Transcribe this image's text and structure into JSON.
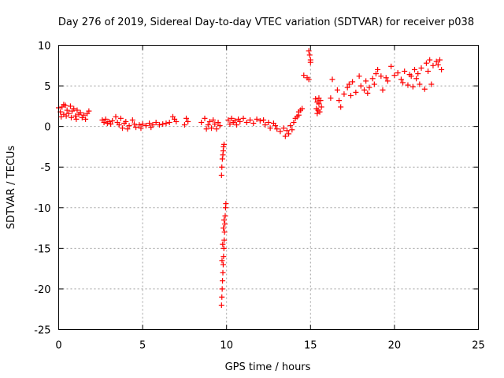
{
  "chart_data": {
    "type": "scatter",
    "title": "Day 276 of 2019, Sidereal Day-to-day VTEC variation (SDTVAR) for receiver p038",
    "xlabel": "GPS time / hours",
    "ylabel": "SDTVAR / TECUs",
    "xlim": [
      0,
      25
    ],
    "ylim": [
      -25,
      10
    ],
    "xticks": [
      0,
      5,
      10,
      15,
      20,
      25
    ],
    "yticks": [
      -25,
      -20,
      -15,
      -10,
      -5,
      0,
      5,
      10
    ],
    "xtick_labels": [
      "0",
      "5",
      "10",
      "15",
      "20",
      "25"
    ],
    "ytick_labels": [
      "-25",
      "-20",
      "-15",
      "-10",
      "-5",
      "0",
      "5",
      "10"
    ],
    "grid": true,
    "marker": "+",
    "series": [
      {
        "name": "SDTVAR",
        "color": "#ff0000",
        "points": [
          [
            0.0,
            2.3
          ],
          [
            0.1,
            1.8
          ],
          [
            0.2,
            2.4
          ],
          [
            0.3,
            1.5
          ],
          [
            0.4,
            2.6
          ],
          [
            0.5,
            2.0
          ],
          [
            0.6,
            1.6
          ],
          [
            0.7,
            2.5
          ],
          [
            0.8,
            1.9
          ],
          [
            0.9,
            2.2
          ],
          [
            1.0,
            1.3
          ],
          [
            1.1,
            2.0
          ],
          [
            1.2,
            1.5
          ],
          [
            1.3,
            1.7
          ],
          [
            1.4,
            1.1
          ],
          [
            1.5,
            1.4
          ],
          [
            1.6,
            0.9
          ],
          [
            1.7,
            1.6
          ],
          [
            1.8,
            1.9
          ],
          [
            0.15,
            1.2
          ],
          [
            0.45,
            1.3
          ],
          [
            0.75,
            1.1
          ],
          [
            1.05,
            0.9
          ],
          [
            0.3,
            2.7
          ],
          [
            2.6,
            0.8
          ],
          [
            2.7,
            0.5
          ],
          [
            2.8,
            0.9
          ],
          [
            2.9,
            0.4
          ],
          [
            3.0,
            0.6
          ],
          [
            3.1,
            0.3
          ],
          [
            3.2,
            0.7
          ],
          [
            3.4,
            1.2
          ],
          [
            3.5,
            0.5
          ],
          [
            3.6,
            0.2
          ],
          [
            3.7,
            1.0
          ],
          [
            3.8,
            -0.2
          ],
          [
            3.9,
            0.4
          ],
          [
            4.0,
            0.6
          ],
          [
            4.1,
            -0.3
          ],
          [
            4.2,
            0.1
          ],
          [
            4.4,
            0.8
          ],
          [
            4.5,
            0.3
          ],
          [
            4.6,
            -0.1
          ],
          [
            4.8,
            0.2
          ],
          [
            5.0,
            0.3
          ],
          [
            5.2,
            0.1
          ],
          [
            5.4,
            0.4
          ],
          [
            5.6,
            0.2
          ],
          [
            5.8,
            0.5
          ],
          [
            6.0,
            0.2
          ],
          [
            6.2,
            0.3
          ],
          [
            6.4,
            0.4
          ],
          [
            6.6,
            0.5
          ],
          [
            4.9,
            -0.2
          ],
          [
            5.5,
            -0.1
          ],
          [
            6.8,
            1.2
          ],
          [
            6.9,
            0.9
          ],
          [
            7.0,
            0.6
          ],
          [
            7.5,
            0.2
          ],
          [
            7.6,
            1.0
          ],
          [
            7.7,
            0.6
          ],
          [
            8.5,
            0.5
          ],
          [
            8.7,
            1.0
          ],
          [
            8.9,
            0.2
          ],
          [
            9.0,
            0.6
          ],
          [
            9.1,
            -0.2
          ],
          [
            9.2,
            0.8
          ],
          [
            9.3,
            0.3
          ],
          [
            9.4,
            -0.3
          ],
          [
            9.5,
            0.5
          ],
          [
            9.6,
            0.1
          ],
          [
            8.8,
            -0.3
          ],
          [
            9.7,
            -6.0
          ],
          [
            9.72,
            -5.0
          ],
          [
            9.75,
            -4.0
          ],
          [
            9.78,
            -3.5
          ],
          [
            9.8,
            -3.0
          ],
          [
            9.82,
            -2.5
          ],
          [
            9.85,
            -2.2
          ],
          [
            9.7,
            -22.0
          ],
          [
            9.72,
            -21.0
          ],
          [
            9.74,
            -20.0
          ],
          [
            9.76,
            -19.0
          ],
          [
            9.78,
            -18.0
          ],
          [
            9.8,
            -17.0
          ],
          [
            9.82,
            -16.0
          ],
          [
            9.84,
            -15.0
          ],
          [
            9.86,
            -14.0
          ],
          [
            9.88,
            -13.0
          ],
          [
            9.9,
            -12.0
          ],
          [
            9.92,
            -11.0
          ],
          [
            9.94,
            -10.0
          ],
          [
            9.96,
            -9.5
          ],
          [
            9.73,
            -16.5
          ],
          [
            9.77,
            -14.5
          ],
          [
            9.81,
            -12.5
          ],
          [
            9.85,
            -11.5
          ],
          [
            10.1,
            0.8
          ],
          [
            10.2,
            0.3
          ],
          [
            10.3,
            1.0
          ],
          [
            10.4,
            0.5
          ],
          [
            10.5,
            0.7
          ],
          [
            10.6,
            0.2
          ],
          [
            10.7,
            0.9
          ],
          [
            10.8,
            0.6
          ],
          [
            11.0,
            1.0
          ],
          [
            11.2,
            0.5
          ],
          [
            11.4,
            0.8
          ],
          [
            11.6,
            0.4
          ],
          [
            11.8,
            0.9
          ],
          [
            12.0,
            0.7
          ],
          [
            12.2,
            0.8
          ],
          [
            12.3,
            0.2
          ],
          [
            12.5,
            0.5
          ],
          [
            12.6,
            -0.2
          ],
          [
            12.8,
            0.4
          ],
          [
            12.9,
            0.1
          ],
          [
            13.0,
            -0.3
          ],
          [
            13.2,
            -0.6
          ],
          [
            13.4,
            -0.2
          ],
          [
            13.5,
            -1.2
          ],
          [
            13.6,
            -0.5
          ],
          [
            13.7,
            -0.9
          ],
          [
            13.8,
            0.1
          ],
          [
            14.0,
            0.5
          ],
          [
            14.1,
            1.0
          ],
          [
            14.2,
            1.2
          ],
          [
            14.3,
            1.8
          ],
          [
            14.4,
            2.0
          ],
          [
            14.5,
            2.2
          ],
          [
            14.3,
            1.4
          ],
          [
            13.9,
            -0.4
          ],
          [
            14.6,
            6.3
          ],
          [
            14.8,
            6.0
          ],
          [
            14.9,
            5.8
          ],
          [
            14.9,
            9.3
          ],
          [
            14.95,
            8.8
          ],
          [
            15.0,
            8.2
          ],
          [
            15.0,
            7.9
          ],
          [
            15.3,
            3.4
          ],
          [
            15.35,
            2.2
          ],
          [
            15.4,
            3.0
          ],
          [
            15.45,
            2.0
          ],
          [
            15.5,
            2.8
          ],
          [
            15.55,
            1.8
          ],
          [
            15.6,
            3.2
          ],
          [
            15.65,
            2.4
          ],
          [
            15.4,
            1.6
          ],
          [
            15.5,
            3.5
          ],
          [
            16.2,
            3.5
          ],
          [
            16.3,
            5.8
          ],
          [
            16.6,
            4.5
          ],
          [
            16.7,
            3.2
          ],
          [
            16.8,
            2.4
          ],
          [
            17.0,
            4.0
          ],
          [
            17.2,
            4.8
          ],
          [
            17.4,
            3.8
          ],
          [
            17.5,
            5.5
          ],
          [
            17.7,
            4.2
          ],
          [
            17.9,
            6.2
          ],
          [
            18.0,
            5.0
          ],
          [
            18.2,
            4.5
          ],
          [
            18.3,
            5.6
          ],
          [
            18.5,
            4.8
          ],
          [
            18.7,
            5.9
          ],
          [
            18.8,
            5.2
          ],
          [
            18.9,
            6.5
          ],
          [
            19.0,
            7.0
          ],
          [
            19.2,
            6.2
          ],
          [
            19.3,
            4.5
          ],
          [
            19.5,
            6.0
          ],
          [
            19.8,
            7.4
          ],
          [
            20.0,
            6.3
          ],
          [
            20.2,
            6.6
          ],
          [
            20.4,
            5.8
          ],
          [
            20.5,
            5.4
          ],
          [
            20.6,
            6.8
          ],
          [
            20.8,
            5.1
          ],
          [
            21.0,
            6.2
          ],
          [
            21.1,
            4.9
          ],
          [
            21.2,
            7.0
          ],
          [
            21.4,
            6.5
          ],
          [
            21.5,
            5.2
          ],
          [
            21.6,
            7.2
          ],
          [
            21.8,
            4.6
          ],
          [
            22.0,
            6.8
          ],
          [
            22.2,
            5.2
          ],
          [
            22.3,
            7.5
          ],
          [
            22.5,
            8.0
          ],
          [
            22.6,
            7.6
          ],
          [
            22.7,
            8.2
          ],
          [
            22.8,
            7.0
          ],
          [
            21.9,
            7.8
          ],
          [
            22.1,
            8.2
          ],
          [
            21.3,
            5.9
          ],
          [
            20.9,
            6.4
          ],
          [
            19.6,
            5.6
          ],
          [
            18.4,
            4.1
          ],
          [
            17.3,
            5.2
          ]
        ]
      }
    ]
  }
}
